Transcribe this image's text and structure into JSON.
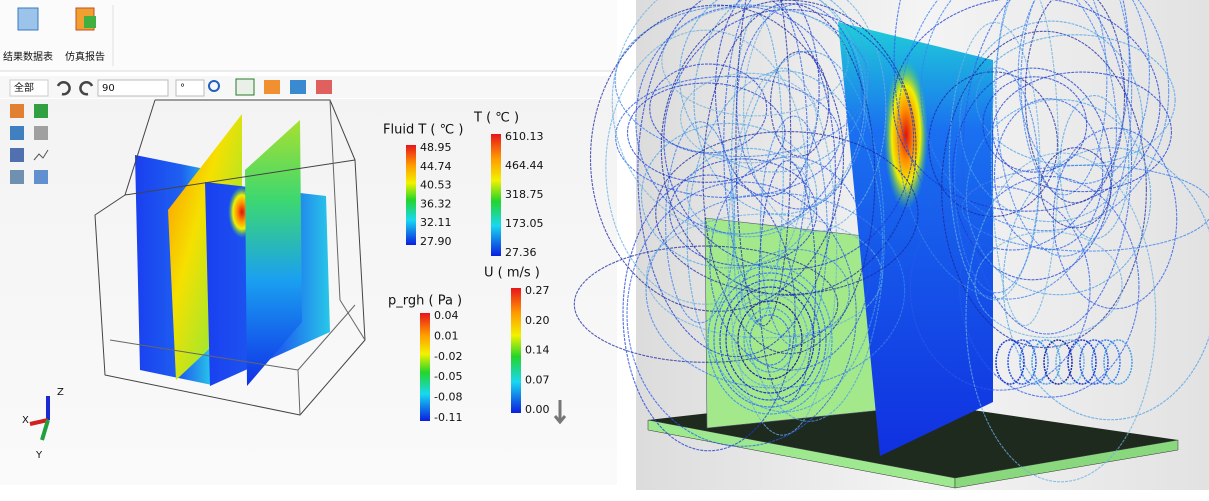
{
  "toolbar": {
    "buttons": [
      "结果数据表",
      "仿真报告"
    ],
    "view_select": "全部",
    "angle": "90",
    "unit": "°"
  },
  "legends": [
    {
      "title": "Fluid T ( ℃ )",
      "ticks": [
        "48.95",
        "44.74",
        "40.53",
        "36.32",
        "32.11",
        "27.90"
      ]
    },
    {
      "title": "T ( ℃ )",
      "ticks": [
        "610.13",
        "464.44",
        "318.75",
        "173.05",
        "27.36"
      ]
    },
    {
      "title": "p_rgh ( Pa )",
      "ticks": [
        "0.04",
        "0.01",
        "-0.02",
        "-0.05",
        "-0.08",
        "-0.11"
      ]
    },
    {
      "title": "U ( m/s )",
      "ticks": [
        "0.27",
        "0.20",
        "0.14",
        "0.07",
        "0.00"
      ]
    }
  ],
  "axes": {
    "z": "Z",
    "x": "X",
    "y": "Y"
  }
}
